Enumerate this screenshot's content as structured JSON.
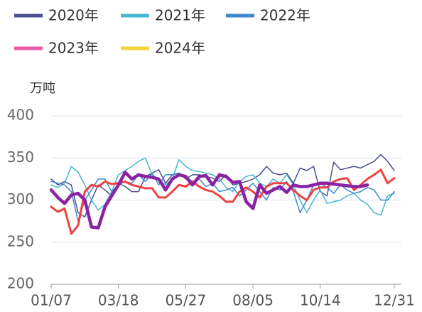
{
  "chart_data": {
    "type": "line",
    "y_label": "万吨",
    "categories": [
      "01/07",
      null,
      null,
      null,
      null,
      null,
      null,
      null,
      null,
      null,
      "03/18",
      null,
      null,
      null,
      null,
      null,
      null,
      null,
      null,
      null,
      "05/27",
      null,
      null,
      null,
      null,
      null,
      null,
      null,
      null,
      null,
      "08/05",
      null,
      null,
      null,
      null,
      null,
      null,
      null,
      null,
      null,
      "10/14",
      null,
      null,
      null,
      null,
      null,
      null,
      null,
      null,
      null,
      null,
      "12/31"
    ],
    "series": [
      {
        "name": "2020年",
        "color": "#4b4f91",
        "legend_color": "#4b4f91",
        "width": 1.5,
        "values": [
          325,
          318,
          322,
          318,
          285,
          280,
          300,
          318,
          312,
          305,
          320,
          316,
          310,
          310,
          328,
          332,
          336,
          320,
          330,
          332,
          325,
          330,
          330,
          328,
          326,
          322,
          330,
          318,
          320,
          322,
          325,
          330,
          340,
          332,
          330,
          332,
          320,
          338,
          335,
          340,
          310,
          305,
          345,
          336,
          338,
          340,
          338,
          342,
          346,
          354,
          346,
          335
        ]
      },
      {
        "name": "2021年",
        "color": "#45b8cf",
        "legend_color": "#45b8cf",
        "width": 1.5,
        "values": [
          318,
          315,
          320,
          340,
          333,
          318,
          300,
          288,
          295,
          310,
          330,
          335,
          340,
          346,
          350,
          330,
          325,
          318,
          325,
          348,
          340,
          335,
          334,
          332,
          330,
          325,
          315,
          310,
          322,
          328,
          330,
          320,
          316,
          325,
          320,
          330,
          318,
          300,
          285,
          300,
          312,
          296,
          298,
          300,
          305,
          308,
          300,
          295,
          285,
          282,
          305,
          308
        ]
      },
      {
        "name": "2022年",
        "color": "#3f88d0",
        "legend_color": "#3f88d0",
        "width": 1.5,
        "values": [
          322,
          320,
          318,
          310,
          275,
          300,
          312,
          325,
          325,
          310,
          318,
          322,
          320,
          330,
          322,
          332,
          318,
          330,
          330,
          332,
          328,
          322,
          325,
          316,
          320,
          310,
          312,
          315,
          305,
          312,
          320,
          310,
          300,
          315,
          312,
          322,
          310,
          285,
          300,
          318,
          320,
          315,
          308,
          318,
          312,
          308,
          310,
          315,
          312,
          300,
          300,
          310
        ]
      },
      {
        "name": "2023年",
        "color": "#ee4343",
        "legend_color": "#e95aa6",
        "width": 3,
        "values": [
          292,
          286,
          290,
          260,
          270,
          310,
          318,
          316,
          322,
          319,
          320,
          322,
          318,
          316,
          314,
          314,
          303,
          303,
          310,
          318,
          316,
          322,
          316,
          312,
          310,
          305,
          298,
          298,
          310,
          315,
          310,
          303,
          316,
          320,
          320,
          320,
          312,
          305,
          300,
          312,
          315,
          315,
          322,
          325,
          326,
          312,
          318,
          325,
          330,
          336,
          320,
          326
        ]
      },
      {
        "name": "2024年",
        "color": "#8a22a3",
        "legend_color": "#f3d43b",
        "width": 4.5,
        "values": [
          312,
          303,
          296,
          306,
          308,
          300,
          268,
          267,
          292,
          305,
          318,
          333,
          325,
          330,
          328,
          327,
          325,
          312,
          325,
          330,
          328,
          318,
          328,
          329,
          318,
          330,
          328,
          321,
          322,
          298,
          290,
          318,
          308,
          312,
          316,
          309,
          318,
          316,
          316,
          318,
          320,
          320,
          319,
          318,
          317,
          316,
          316,
          318,
          null,
          null,
          null,
          null
        ]
      }
    ],
    "ylim": [
      200,
      400
    ],
    "yticks": [
      200,
      250,
      300,
      350,
      400
    ],
    "grid": true
  }
}
